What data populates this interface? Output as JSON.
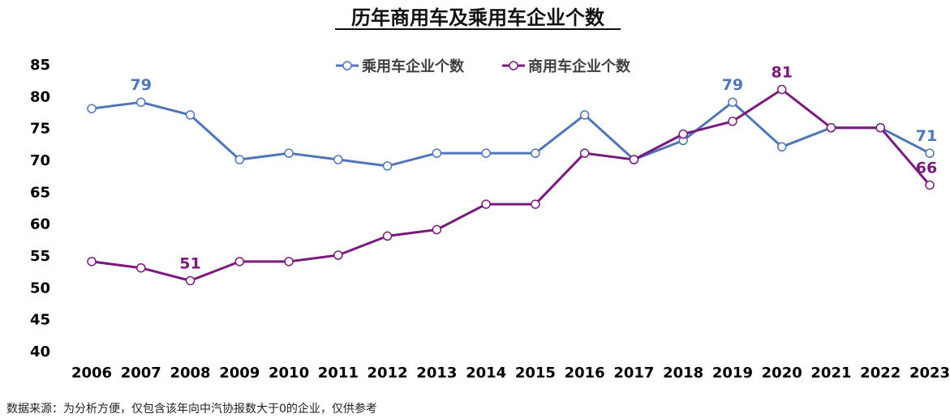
{
  "chart_data": {
    "type": "line",
    "title": "历年商用车及乘用车企业个数",
    "xlabel": "",
    "ylabel": "",
    "categories": [
      "2006",
      "2007",
      "2008",
      "2009",
      "2010",
      "2011",
      "2012",
      "2013",
      "2014",
      "2015",
      "2016",
      "2017",
      "2018",
      "2019",
      "2020",
      "2021",
      "2022",
      "2023"
    ],
    "ylim": [
      40,
      85
    ],
    "yticks": [
      40,
      45,
      50,
      55,
      60,
      65,
      70,
      75,
      80,
      85
    ],
    "grid": false,
    "legend_position": "top-right",
    "series": [
      {
        "name": "乘用车企业个数",
        "color": "#4f76b8",
        "values": [
          78,
          79,
          77,
          70,
          71,
          70,
          69,
          71,
          71,
          71,
          77,
          70,
          73,
          79,
          72,
          75,
          75,
          71
        ],
        "labels": [
          {
            "category": "2007",
            "text": "79"
          },
          {
            "category": "2019",
            "text": "79"
          },
          {
            "category": "2023",
            "text": "71"
          }
        ]
      },
      {
        "name": "商用车企业个数",
        "color": "#7a1a7e",
        "values": [
          54,
          53,
          51,
          54,
          54,
          55,
          58,
          59,
          63,
          63,
          71,
          70,
          74,
          76,
          81,
          75,
          75,
          66
        ],
        "labels": [
          {
            "category": "2008",
            "text": "51"
          },
          {
            "category": "2020",
            "text": "81"
          },
          {
            "category": "2023",
            "text": "66"
          }
        ]
      }
    ],
    "footnote": "数据来源：为分析方便，仅包含该年向中汽协报数大于0的企业，仅供参考"
  }
}
